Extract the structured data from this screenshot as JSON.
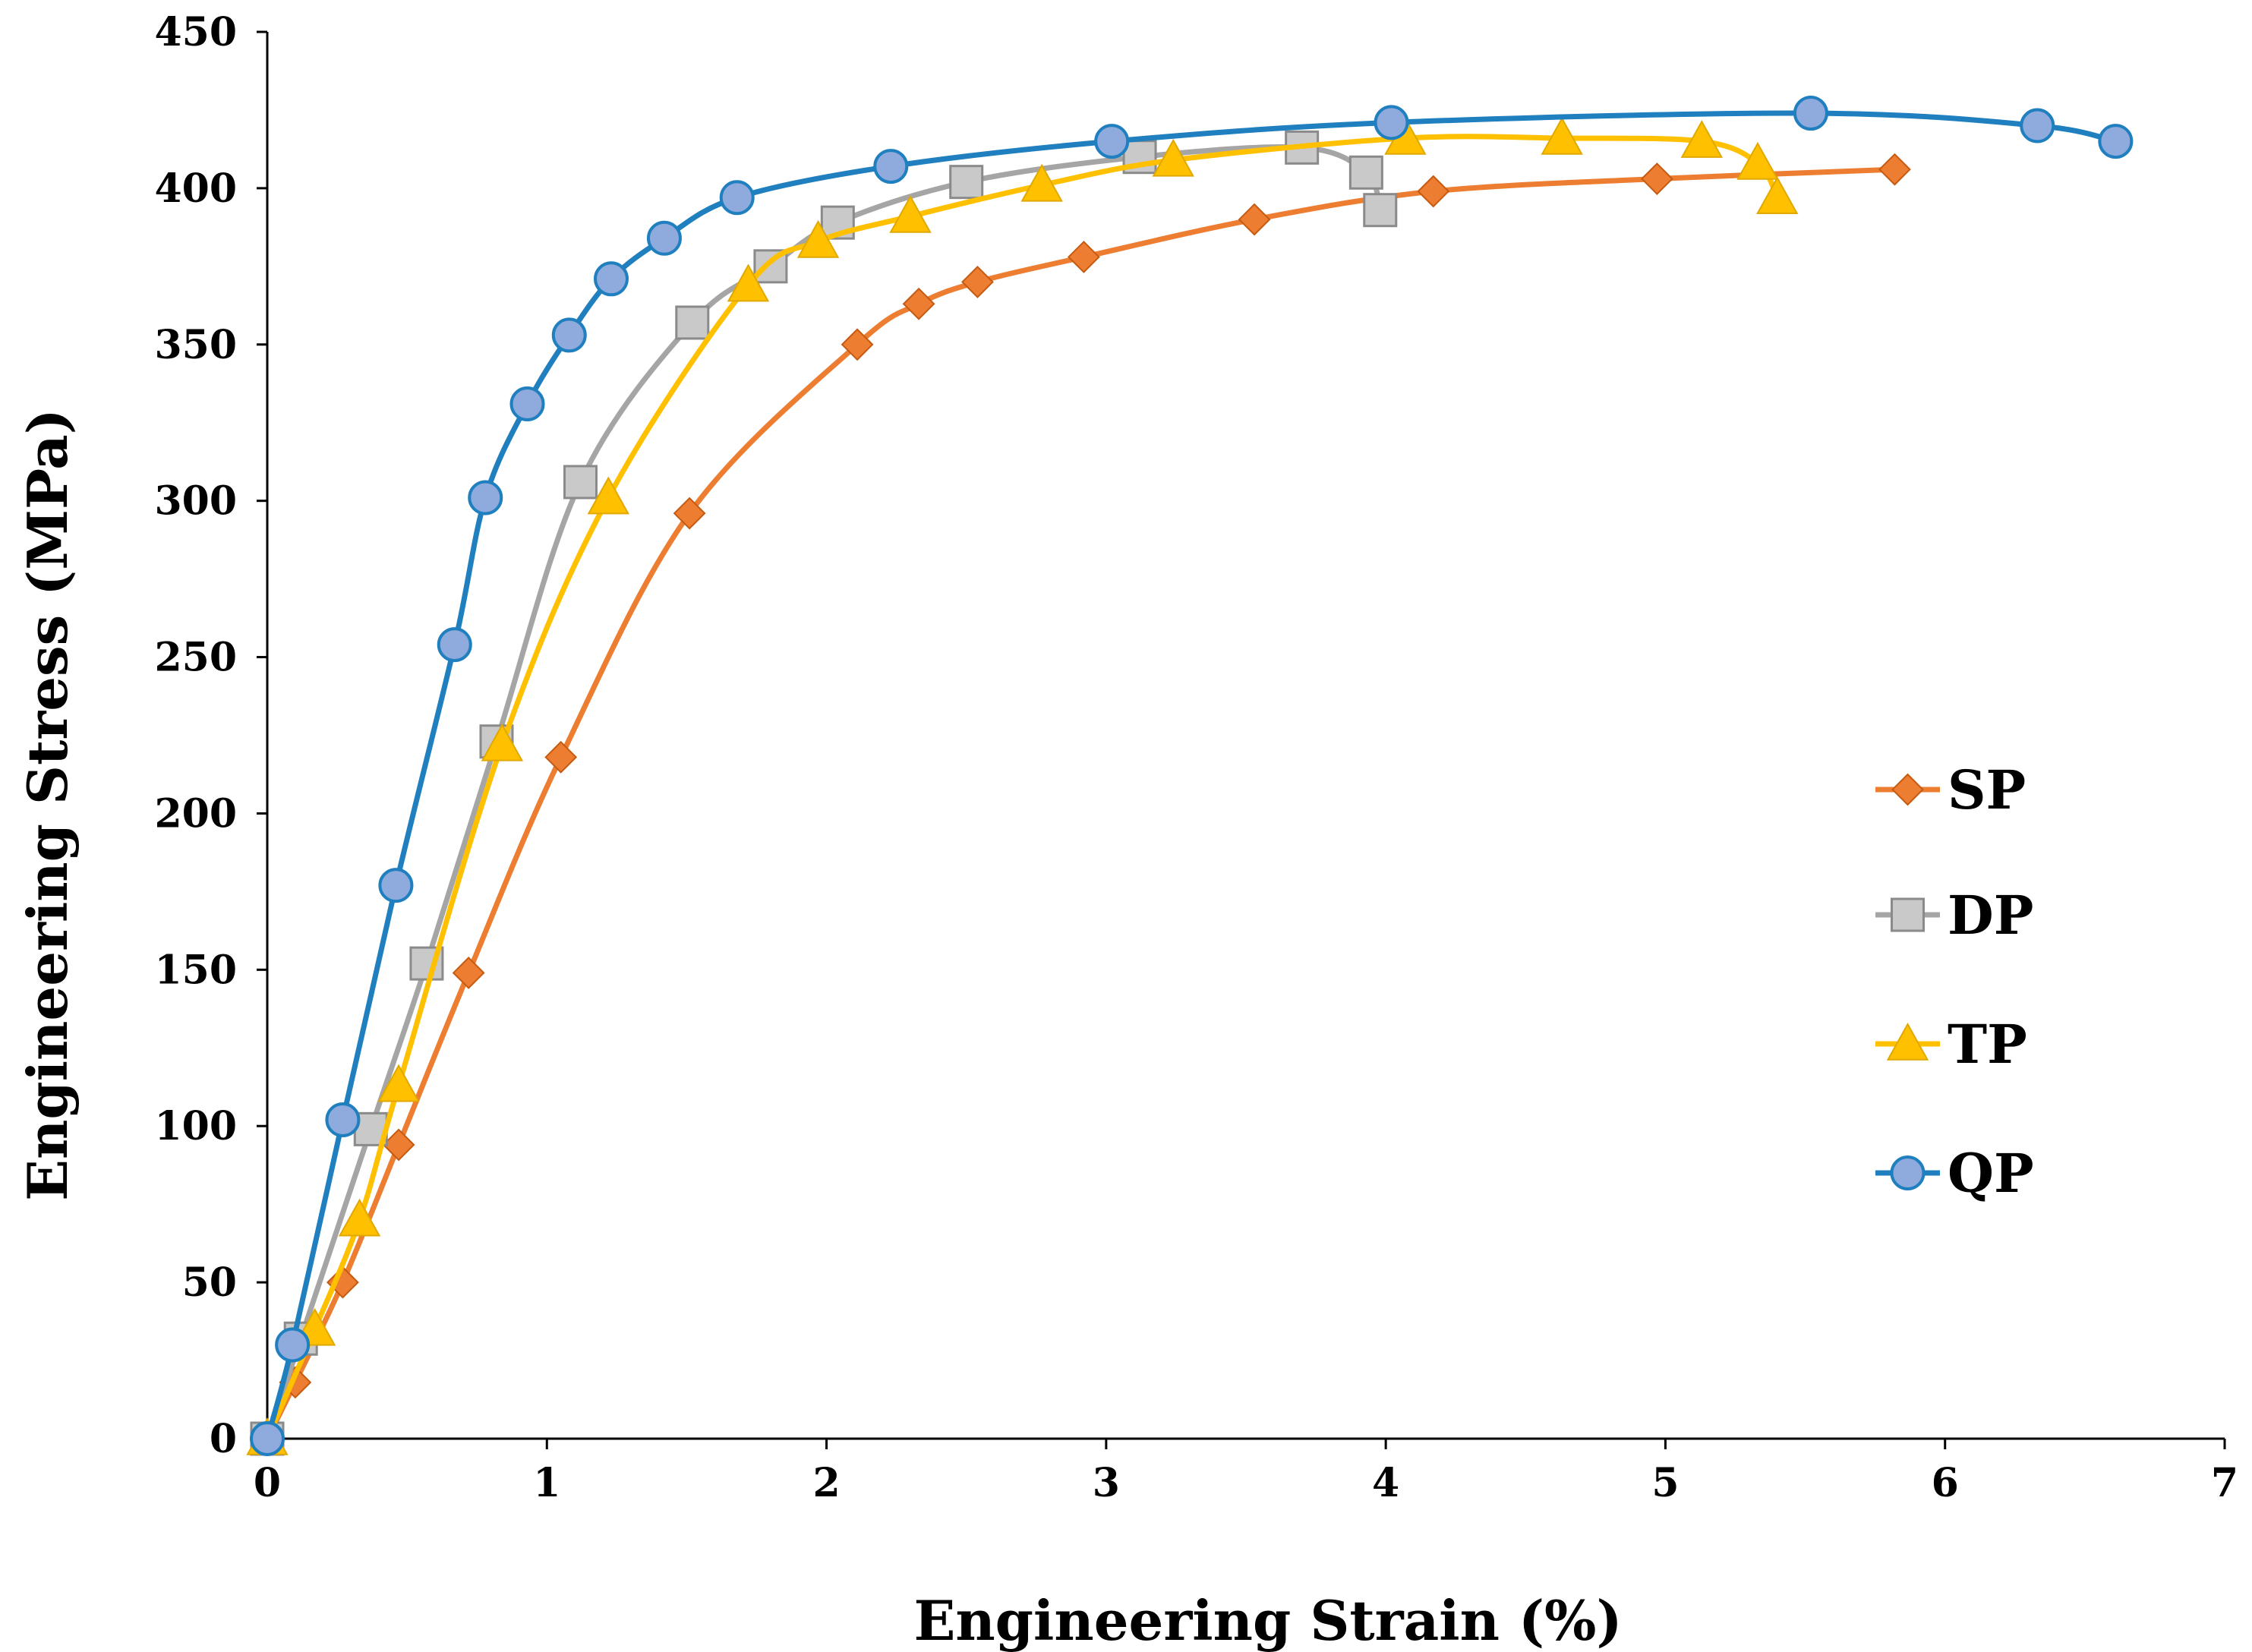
{
  "chart_data": {
    "type": "line",
    "title": "",
    "xlabel": "Engineering Strain (%)",
    "ylabel": "Engineering Stress (MPa)",
    "xlim": [
      0,
      7
    ],
    "ylim": [
      0,
      450
    ],
    "xticks": [
      0,
      1,
      2,
      3,
      4,
      5,
      6,
      7
    ],
    "yticks": [
      0,
      50,
      100,
      150,
      200,
      250,
      300,
      350,
      400,
      450
    ],
    "grid": false,
    "legend_position": "right",
    "series": [
      {
        "name": "SP",
        "color": "#ED7D31",
        "marker": "diamond",
        "x": [
          0,
          0.1,
          0.27,
          0.47,
          0.72,
          1.05,
          1.51,
          2.11,
          2.33,
          2.54,
          2.92,
          3.53,
          4.17,
          4.97,
          5.82
        ],
        "y": [
          0,
          18,
          50,
          94,
          149,
          218,
          296,
          350,
          363,
          370,
          378,
          390,
          399,
          403,
          406
        ]
      },
      {
        "name": "DP",
        "color": "#A5A5A5",
        "marker": "square",
        "x": [
          0,
          0.12,
          0.37,
          0.57,
          0.82,
          1.12,
          1.52,
          1.8,
          2.04,
          2.5,
          3.12,
          3.7,
          3.93,
          3.98
        ],
        "y": [
          0,
          32,
          99,
          152,
          223,
          306,
          357,
          375,
          389,
          402,
          410,
          413,
          405,
          393
        ]
      },
      {
        "name": "TP",
        "color": "#FFC000",
        "marker": "triangle",
        "x": [
          0,
          0.17,
          0.33,
          0.47,
          0.84,
          1.22,
          1.72,
          1.97,
          2.3,
          2.77,
          3.24,
          4.07,
          4.63,
          5.13,
          5.33,
          5.4
        ],
        "y": [
          0,
          35,
          70,
          113,
          222,
          301,
          369,
          383,
          391,
          401,
          409,
          416,
          416,
          415,
          408,
          397
        ]
      },
      {
        "name": "QP",
        "color": "#1F7FBF",
        "marker_fill": "#8FAADC",
        "marker": "circle",
        "x": [
          0,
          0.09,
          0.27,
          0.46,
          0.67,
          0.78,
          0.93,
          1.08,
          1.23,
          1.42,
          1.68,
          2.23,
          3.02,
          4.02,
          5.52,
          6.33,
          6.61
        ],
        "y": [
          0,
          30,
          102,
          177,
          254,
          301,
          331,
          353,
          371,
          384,
          397,
          407,
          415,
          421,
          424,
          420,
          415
        ]
      }
    ]
  }
}
